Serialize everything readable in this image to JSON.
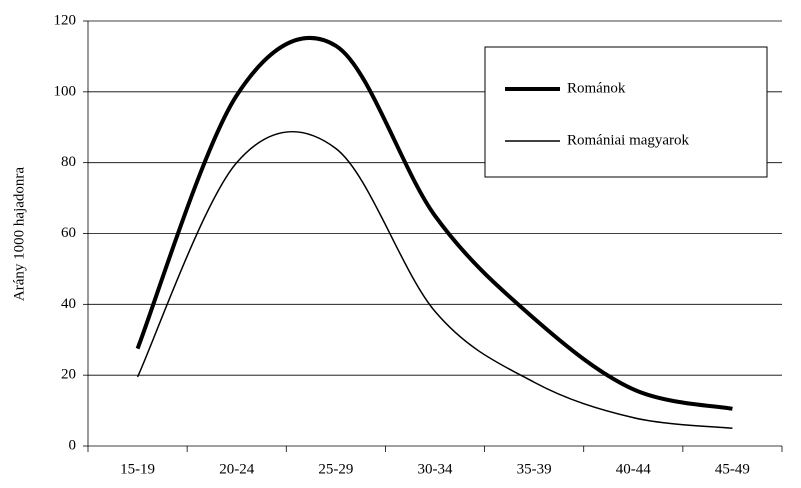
{
  "chart_data": {
    "type": "line",
    "y_label": "Arány 1000 hajadonra",
    "categories": [
      "15-19",
      "20-24",
      "25-29",
      "30-34",
      "35-39",
      "40-44",
      "45-49"
    ],
    "series": [
      {
        "name": "Románok",
        "color": "#000000",
        "width": 4,
        "values": [
          27.5,
          99,
          113,
          65,
          36,
          16,
          10.5
        ]
      },
      {
        "name": "Romániai magyarok",
        "color": "#000000",
        "width": 1.5,
        "values": [
          19.5,
          80,
          84,
          38,
          18,
          8,
          5
        ]
      }
    ],
    "ylim": [
      0,
      120
    ],
    "yticks": [
      0,
      20,
      40,
      60,
      80,
      100,
      120
    ],
    "grid": true,
    "legend": "top-right"
  }
}
